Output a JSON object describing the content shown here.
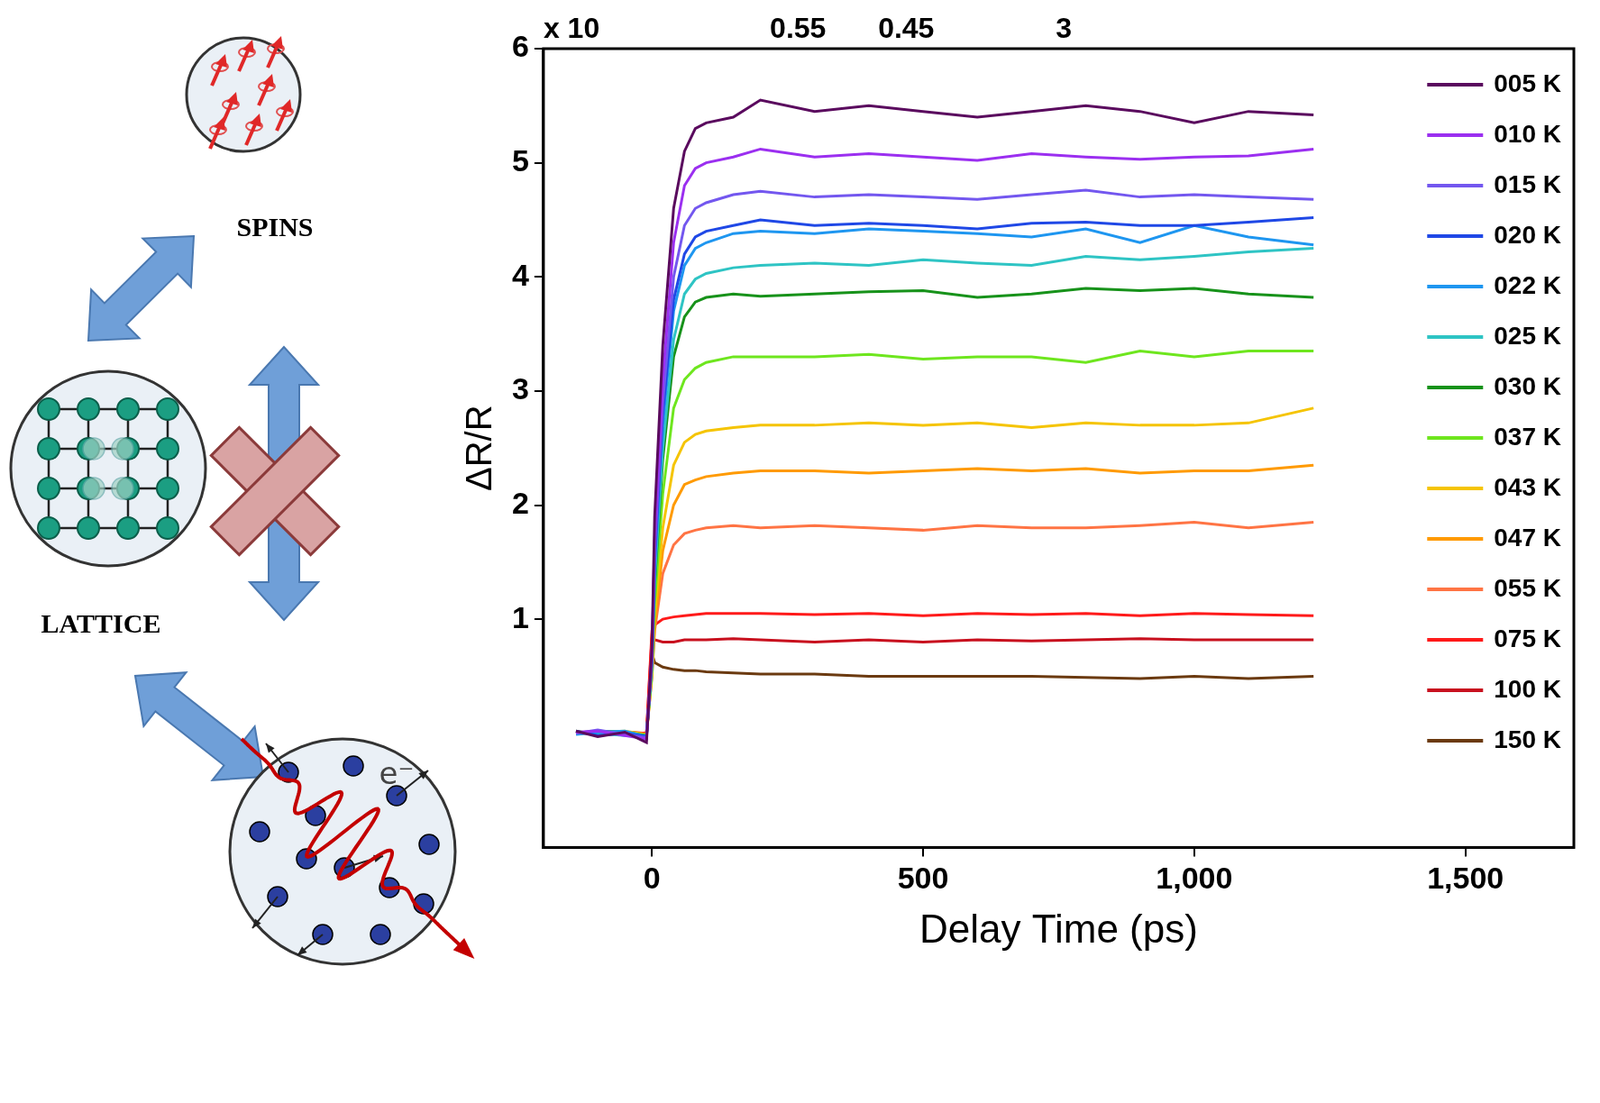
{
  "chart_data": {
    "type": "line",
    "x_label": "Delay Time (ps)",
    "y_label": "ΔR/R",
    "annotations": [
      "x 10",
      "0.55",
      "0.45",
      "3"
    ],
    "x": [
      -140,
      -100,
      -50,
      -10,
      0,
      5,
      20,
      40,
      60,
      80,
      100,
      150,
      200,
      300,
      400,
      500,
      600,
      700,
      800,
      900,
      1000,
      1100,
      1220
    ],
    "xlim": [
      -200,
      1700
    ],
    "xticks": [
      0,
      500,
      1000,
      1500
    ],
    "ylim": [
      -1,
      6
    ],
    "yticks": [
      1,
      2,
      3,
      4,
      5,
      6
    ],
    "grid": false,
    "legend": "upper right",
    "series": [
      {
        "name": "005 K",
        "color": "#5a0a5e",
        "values": [
          0.02,
          -0.03,
          0.01,
          -0.08,
          0.75,
          1.9,
          3.4,
          4.6,
          5.1,
          5.3,
          5.35,
          5.4,
          5.55,
          5.45,
          5.5,
          5.45,
          5.4,
          5.45,
          5.5,
          5.45,
          5.35,
          5.45,
          5.42
        ]
      },
      {
        "name": "010 K",
        "color": "#9b2ff0",
        "values": [
          0.01,
          0.02,
          -0.02,
          -0.05,
          0.7,
          1.7,
          3.1,
          4.3,
          4.8,
          4.95,
          5.0,
          5.05,
          5.12,
          5.05,
          5.08,
          5.05,
          5.02,
          5.08,
          5.05,
          5.03,
          5.05,
          5.06,
          5.12
        ]
      },
      {
        "name": "015 K",
        "color": "#7357ef",
        "values": [
          0.0,
          0.03,
          -0.01,
          -0.04,
          0.7,
          1.6,
          2.9,
          4.0,
          4.45,
          4.6,
          4.65,
          4.72,
          4.75,
          4.7,
          4.72,
          4.7,
          4.68,
          4.72,
          4.76,
          4.7,
          4.72,
          4.7,
          4.68
        ]
      },
      {
        "name": "020 K",
        "color": "#1f48e6",
        "values": [
          0.02,
          -0.02,
          0.0,
          -0.03,
          0.65,
          1.5,
          2.8,
          3.8,
          4.2,
          4.35,
          4.4,
          4.45,
          4.5,
          4.45,
          4.47,
          4.45,
          4.42,
          4.47,
          4.48,
          4.45,
          4.45,
          4.48,
          4.52
        ]
      },
      {
        "name": "022 K",
        "color": "#1e96f0",
        "values": [
          -0.01,
          0.01,
          0.02,
          -0.03,
          0.65,
          1.45,
          2.7,
          3.7,
          4.1,
          4.25,
          4.3,
          4.38,
          4.4,
          4.38,
          4.42,
          4.4,
          4.38,
          4.35,
          4.42,
          4.3,
          4.45,
          4.35,
          4.28
        ]
      },
      {
        "name": "025 K",
        "color": "#2ec4c4",
        "values": [
          0.01,
          0.0,
          -0.02,
          -0.02,
          0.6,
          1.35,
          2.5,
          3.45,
          3.85,
          3.98,
          4.03,
          4.08,
          4.1,
          4.12,
          4.1,
          4.15,
          4.12,
          4.1,
          4.18,
          4.15,
          4.18,
          4.22,
          4.25
        ]
      },
      {
        "name": "030 K",
        "color": "#17921a",
        "values": [
          0.0,
          0.02,
          0.01,
          -0.02,
          0.6,
          1.3,
          2.4,
          3.3,
          3.65,
          3.78,
          3.82,
          3.85,
          3.83,
          3.85,
          3.87,
          3.88,
          3.82,
          3.85,
          3.9,
          3.88,
          3.9,
          3.85,
          3.82
        ]
      },
      {
        "name": "037 K",
        "color": "#6ee61e",
        "values": [
          0.02,
          -0.01,
          0.0,
          -0.02,
          0.55,
          1.15,
          2.1,
          2.85,
          3.1,
          3.2,
          3.25,
          3.3,
          3.3,
          3.3,
          3.32,
          3.28,
          3.3,
          3.3,
          3.25,
          3.35,
          3.3,
          3.35,
          3.35
        ]
      },
      {
        "name": "043 K",
        "color": "#f5c400",
        "values": [
          0.0,
          0.01,
          0.02,
          -0.01,
          0.55,
          1.05,
          1.8,
          2.35,
          2.55,
          2.62,
          2.65,
          2.68,
          2.7,
          2.7,
          2.72,
          2.7,
          2.72,
          2.68,
          2.72,
          2.7,
          2.7,
          2.72,
          2.85
        ]
      },
      {
        "name": "047 K",
        "color": "#ff9a00",
        "values": [
          0.01,
          0.0,
          -0.01,
          -0.01,
          0.5,
          0.95,
          1.6,
          2.0,
          2.18,
          2.22,
          2.25,
          2.28,
          2.3,
          2.3,
          2.28,
          2.3,
          2.32,
          2.3,
          2.32,
          2.28,
          2.3,
          2.3,
          2.35
        ]
      },
      {
        "name": "055 K",
        "color": "#ff7444",
        "values": [
          0.0,
          0.02,
          0.0,
          -0.01,
          0.5,
          0.9,
          1.4,
          1.65,
          1.75,
          1.78,
          1.8,
          1.82,
          1.8,
          1.82,
          1.8,
          1.78,
          1.82,
          1.8,
          1.8,
          1.82,
          1.85,
          1.8,
          1.85
        ]
      },
      {
        "name": "075 K",
        "color": "#ff1a1a",
        "values": [
          0.01,
          -0.01,
          0.01,
          0.0,
          0.9,
          0.95,
          1.0,
          1.02,
          1.03,
          1.04,
          1.05,
          1.05,
          1.05,
          1.04,
          1.05,
          1.03,
          1.05,
          1.04,
          1.05,
          1.03,
          1.05,
          1.04,
          1.03
        ]
      },
      {
        "name": "100 K",
        "color": "#c8101e",
        "values": [
          0.0,
          0.01,
          0.0,
          0.0,
          0.85,
          0.82,
          0.8,
          0.8,
          0.82,
          0.82,
          0.82,
          0.83,
          0.82,
          0.8,
          0.82,
          0.8,
          0.82,
          0.81,
          0.82,
          0.83,
          0.82,
          0.82,
          0.82
        ]
      },
      {
        "name": "150 K",
        "color": "#6b3a10",
        "values": [
          0.0,
          0.0,
          0.01,
          0.0,
          0.7,
          0.62,
          0.58,
          0.56,
          0.55,
          0.55,
          0.54,
          0.53,
          0.52,
          0.52,
          0.5,
          0.5,
          0.5,
          0.5,
          0.49,
          0.48,
          0.5,
          0.48,
          0.5
        ]
      }
    ]
  },
  "diagram": {
    "nodes": [
      {
        "label": "SPINS"
      },
      {
        "label": "LATTICE"
      },
      {
        "label": "e⁻"
      }
    ]
  }
}
